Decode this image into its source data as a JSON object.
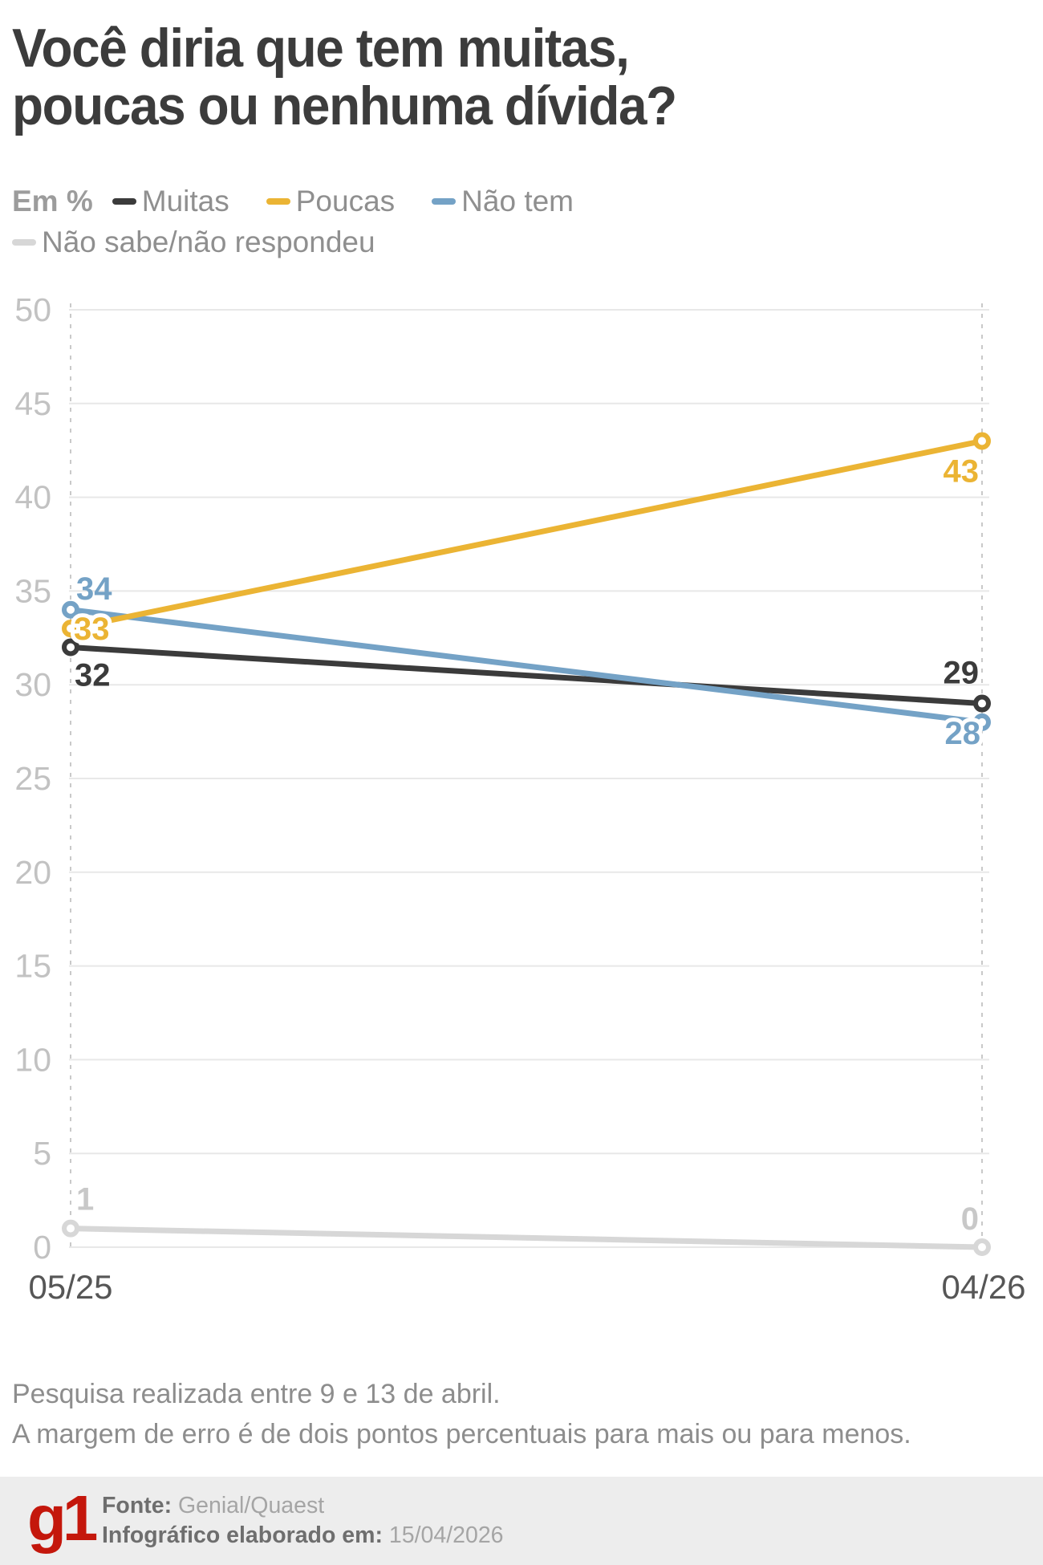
{
  "title": {
    "line1": "Você diria que tem muitas,",
    "line2": "poucas ou nenhuma dívida?"
  },
  "legend": {
    "unit_label": "Em %",
    "items": [
      {
        "label": "Muitas",
        "color": "#3b3b3b"
      },
      {
        "label": "Poucas",
        "color": "#ebb434"
      },
      {
        "label": "Não tem",
        "color": "#74a2c6"
      },
      {
        "label": "Não sabe/não respondeu",
        "color": "#d7d7d7"
      }
    ]
  },
  "chart_data": {
    "type": "line",
    "x": [
      "05/25",
      "04/26"
    ],
    "series": [
      {
        "name": "Muitas",
        "color": "#3b3b3b",
        "values": [
          32,
          29
        ]
      },
      {
        "name": "Poucas",
        "color": "#ebb434",
        "values": [
          33,
          43
        ]
      },
      {
        "name": "Não tem",
        "color": "#74a2c6",
        "values": [
          34,
          28
        ]
      },
      {
        "name": "Não sabe/não respondeu",
        "color": "#d7d7d7",
        "label_color": "#c8c8c8",
        "values": [
          1,
          0
        ]
      }
    ],
    "ylabel": "Em %",
    "ylim": [
      0,
      50
    ],
    "ytick_step": 5,
    "grid": true,
    "legend_position": "top"
  },
  "footnotes": [
    "Pesquisa realizada entre 9 e 13 de abril.",
    "A margem de erro é de dois pontos percentuais para mais ou para menos."
  ],
  "footer": {
    "logo": "g1",
    "logo_color": "#c4170c",
    "source_label": "Fonte:",
    "source_value": "Genial/Quaest",
    "info_label": "Infográfico elaborado em:",
    "info_value": "15/04/2026"
  }
}
